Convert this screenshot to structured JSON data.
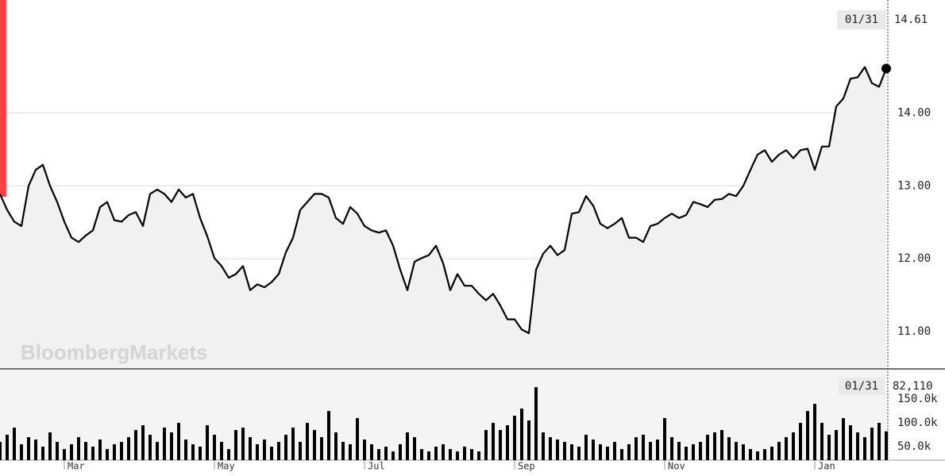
{
  "chart_data": [
    {
      "type": "line",
      "color": "#000000",
      "watermark": "BloombergMarkets",
      "categories": [
        null,
        null,
        null,
        null,
        null,
        null,
        null,
        null,
        null,
        "Mar",
        null,
        null,
        null,
        null,
        null,
        null,
        null,
        null,
        null,
        null,
        null,
        null,
        null,
        null,
        null,
        null,
        null,
        null,
        null,
        null,
        "May",
        null,
        null,
        null,
        null,
        null,
        null,
        null,
        null,
        null,
        null,
        null,
        null,
        null,
        null,
        null,
        null,
        null,
        null,
        null,
        null,
        "Jul",
        null,
        null,
        null,
        null,
        null,
        null,
        null,
        null,
        null,
        null,
        null,
        null,
        null,
        null,
        null,
        null,
        null,
        null,
        null,
        null,
        "Sep",
        null,
        null,
        null,
        null,
        null,
        null,
        null,
        null,
        null,
        null,
        null,
        null,
        null,
        null,
        null,
        null,
        null,
        null,
        null,
        null,
        "Nov",
        null,
        null,
        null,
        null,
        null,
        null,
        null,
        null,
        null,
        null,
        null,
        null,
        null,
        null,
        null,
        null,
        null,
        null,
        null,
        null,
        "Jan",
        null,
        null,
        null,
        null,
        null,
        null,
        null,
        null,
        null,
        null
      ],
      "values": [
        12.89,
        12.67,
        12.51,
        12.45,
        13.0,
        13.22,
        13.29,
        13.0,
        12.78,
        12.51,
        12.29,
        12.23,
        12.32,
        12.39,
        12.71,
        12.78,
        12.53,
        12.51,
        12.6,
        12.64,
        12.45,
        12.89,
        12.95,
        12.89,
        12.78,
        12.95,
        12.84,
        12.89,
        12.56,
        12.31,
        12.01,
        11.9,
        11.74,
        11.79,
        11.9,
        11.57,
        11.65,
        11.61,
        11.68,
        11.79,
        12.09,
        12.29,
        12.67,
        12.78,
        12.89,
        12.89,
        12.84,
        12.56,
        12.48,
        12.71,
        12.62,
        12.45,
        12.39,
        12.36,
        12.39,
        12.18,
        11.85,
        11.57,
        11.96,
        12.01,
        12.05,
        12.18,
        11.94,
        11.57,
        11.79,
        11.63,
        11.63,
        11.52,
        11.43,
        11.52,
        11.36,
        11.17,
        11.17,
        11.03,
        10.98,
        11.85,
        12.07,
        12.18,
        12.05,
        12.12,
        12.62,
        12.64,
        12.86,
        12.73,
        12.48,
        12.42,
        12.48,
        12.56,
        12.29,
        12.29,
        12.23,
        12.45,
        12.48,
        12.56,
        12.62,
        12.56,
        12.6,
        12.78,
        12.75,
        12.71,
        12.81,
        12.82,
        12.89,
        12.86,
        13.0,
        13.22,
        13.43,
        13.49,
        13.33,
        13.43,
        13.49,
        13.38,
        13.49,
        13.51,
        13.22,
        13.54,
        13.54,
        14.09,
        14.2,
        14.47,
        14.49,
        14.63,
        14.41,
        14.36,
        14.61
      ],
      "ylim": [
        10.49,
        15.55
      ],
      "yticks": [
        {
          "value": 11,
          "label": "11.00"
        },
        {
          "value": 12,
          "label": "12.00"
        },
        {
          "value": 13,
          "label": "13.00"
        },
        {
          "value": 14,
          "label": "14.00"
        }
      ],
      "grid": true,
      "last": {
        "date": "01/31",
        "value": 14.61
      }
    },
    {
      "type": "bar",
      "color": "#000000",
      "values": [
        60000,
        75000,
        90000,
        55000,
        70000,
        65000,
        50000,
        80000,
        60000,
        45000,
        55000,
        70000,
        60000,
        50000,
        65000,
        45000,
        55000,
        60000,
        70000,
        85000,
        95000,
        75000,
        60000,
        90000,
        80000,
        100000,
        65000,
        55000,
        50000,
        95000,
        75000,
        60000,
        45000,
        85000,
        90000,
        70000,
        55000,
        65000,
        50000,
        60000,
        75000,
        90000,
        60000,
        100000,
        85000,
        70000,
        125000,
        80000,
        60000,
        55000,
        110000,
        65000,
        55000,
        45000,
        50000,
        40000,
        55000,
        80000,
        70000,
        45000,
        40000,
        50000,
        55000,
        45000,
        40000,
        50000,
        45000,
        40000,
        85000,
        100000,
        85000,
        95000,
        115000,
        130000,
        105000,
        175000,
        80000,
        70000,
        65000,
        60000,
        55000,
        50000,
        75000,
        65000,
        55000,
        50000,
        60000,
        45000,
        55000,
        70000,
        75000,
        60000,
        65000,
        110000,
        70000,
        60000,
        50000,
        55000,
        60000,
        75000,
        80000,
        85000,
        70000,
        60000,
        55000,
        45000,
        40000,
        45000,
        50000,
        60000,
        70000,
        80000,
        100000,
        125000,
        140000,
        100000,
        75000,
        85000,
        110000,
        95000,
        80000,
        70000,
        90000,
        100000,
        82110
      ],
      "ylim": [
        21700,
        211700
      ],
      "yticks": [
        {
          "value": 50000,
          "label": "50.0k"
        },
        {
          "value": 100000,
          "label": "100.0k"
        },
        {
          "value": 150000,
          "label": "150.0k"
        }
      ],
      "last": {
        "date": "01/31",
        "value": 82110,
        "label": "82,110"
      }
    }
  ]
}
